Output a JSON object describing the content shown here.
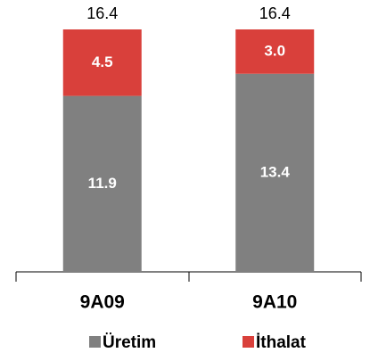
{
  "chart_data": {
    "type": "bar",
    "stacked": true,
    "categories": [
      "9A09",
      "9A10"
    ],
    "series": [
      {
        "name": "Üretim",
        "color": "#808080",
        "values": [
          11.9,
          13.4
        ]
      },
      {
        "name": "İthalat",
        "color": "#d9403b",
        "values": [
          4.5,
          3.0
        ],
        "value_labels": [
          "4.5",
          "3.0"
        ]
      }
    ],
    "totals": [
      16.4,
      16.4
    ],
    "legend": "bottom"
  }
}
